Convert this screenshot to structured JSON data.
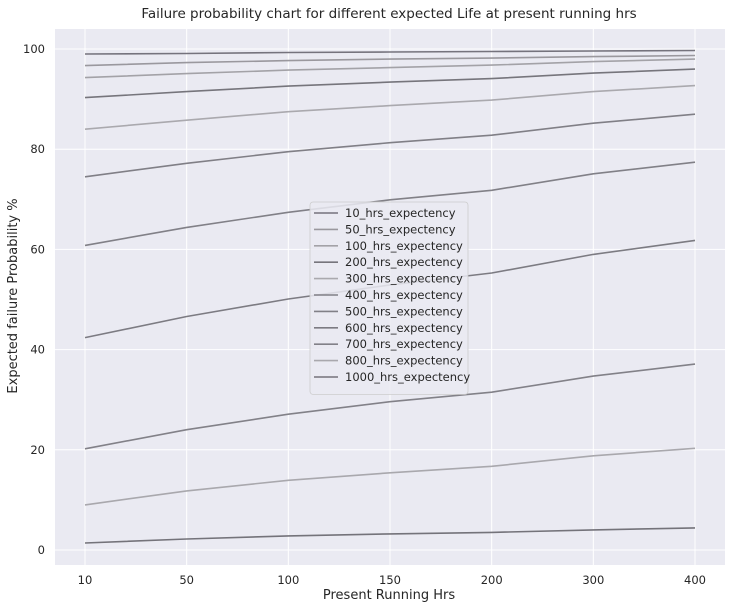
{
  "chart_data": {
    "type": "line",
    "title": "Failure probability chart for different expected Life at present running hrs",
    "xlabel": "Present Running Hrs",
    "ylabel": "Expected failure Probability %",
    "categories": [
      "10",
      "50",
      "100",
      "150",
      "200",
      "300",
      "400"
    ],
    "ylim": [
      -3,
      104
    ],
    "yticks": [
      0,
      20,
      40,
      60,
      80,
      100
    ],
    "grid": true,
    "legend_position": "center",
    "background": "#eaeaf2",
    "grid_color": "#ffffff",
    "series": [
      {
        "name": "10_hrs_expectency",
        "color": "#75737d",
        "values": [
          99.0,
          99.1,
          99.3,
          99.4,
          99.5,
          99.6,
          99.7
        ]
      },
      {
        "name": "50_hrs_expectency",
        "color": "#9a989e",
        "values": [
          96.7,
          97.3,
          97.7,
          98.0,
          98.2,
          98.5,
          98.7
        ]
      },
      {
        "name": "100_hrs_expectency",
        "color": "#a3a2a7",
        "values": [
          94.3,
          95.1,
          95.8,
          96.3,
          96.8,
          97.5,
          98.0
        ]
      },
      {
        "name": "200_hrs_expectency",
        "color": "#76757c",
        "values": [
          90.3,
          91.5,
          92.6,
          93.4,
          94.1,
          95.2,
          96.0
        ]
      },
      {
        "name": "300_hrs_expectency",
        "color": "#aaa9ae",
        "values": [
          84.0,
          85.8,
          87.5,
          88.7,
          89.8,
          91.5,
          92.7
        ]
      },
      {
        "name": "400_hrs_expectency",
        "color": "#807f86",
        "values": [
          74.5,
          77.2,
          79.5,
          81.3,
          82.8,
          85.2,
          87.0
        ]
      },
      {
        "name": "500_hrs_expectency",
        "color": "#818087",
        "values": [
          60.8,
          64.4,
          67.4,
          69.9,
          71.8,
          75.1,
          77.4
        ]
      },
      {
        "name": "600_hrs_expectency",
        "color": "#7c7b82",
        "values": [
          42.4,
          46.6,
          50.1,
          52.9,
          55.3,
          59.0,
          61.8
        ]
      },
      {
        "name": "700_hrs_expectency",
        "color": "#828188",
        "values": [
          20.2,
          24.0,
          27.1,
          29.6,
          31.5,
          34.7,
          37.1
        ]
      },
      {
        "name": "800_hrs_expectency",
        "color": "#a9a8ad",
        "values": [
          9.0,
          11.8,
          13.9,
          15.4,
          16.7,
          18.8,
          20.3
        ]
      },
      {
        "name": "1000_hrs_expectency",
        "color": "#74737a",
        "values": [
          1.4,
          2.2,
          2.8,
          3.2,
          3.5,
          4.0,
          4.4
        ]
      }
    ]
  }
}
